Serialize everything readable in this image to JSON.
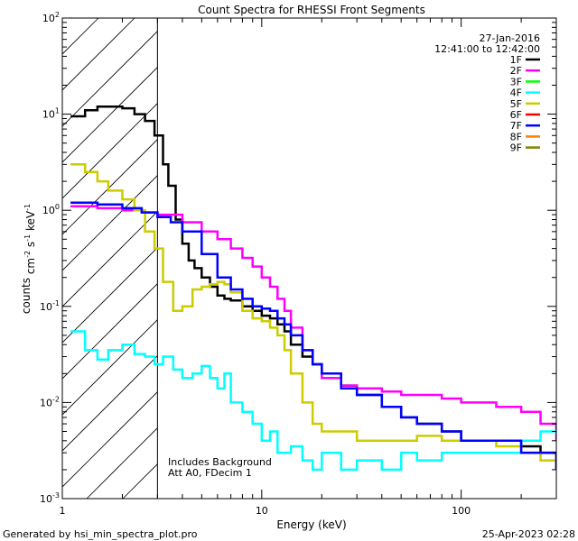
{
  "chart_data": {
    "type": "line",
    "title": "Count Spectra for RHESSI Front Segments",
    "xlabel": "Energy (keV)",
    "ylabel": "counts cm^-2 s^-1 keV^-1",
    "xscale": "log",
    "yscale": "log",
    "xlim": [
      1,
      300
    ],
    "ylim": [
      0.001,
      100
    ],
    "x_tick_labels": [
      "1",
      "10",
      "100"
    ],
    "y_tick_labels": [
      "10^-3",
      "10^-2",
      "10^-1",
      "10^0",
      "10^1",
      "10^2"
    ],
    "shaded_region": {
      "x_from": 1,
      "x_to": 3,
      "style": "diagonal-hatch"
    },
    "date_label": "27-Jan-2016",
    "time_label": "12:41:00 to 12:42:00",
    "annotation_lines": [
      "Includes Background",
      "Att A0, FDecim 1"
    ],
    "legend": [
      {
        "name": "1F",
        "color": "#000000"
      },
      {
        "name": "2F",
        "color": "#ff00ff"
      },
      {
        "name": "3F",
        "color": "#00ff00"
      },
      {
        "name": "4F",
        "color": "#00ffff"
      },
      {
        "name": "5F",
        "color": "#cccc00"
      },
      {
        "name": "6F",
        "color": "#ff0000"
      },
      {
        "name": "7F",
        "color": "#0000ff"
      },
      {
        "name": "8F",
        "color": "#ff8000"
      },
      {
        "name": "9F",
        "color": "#808000"
      }
    ],
    "series": [
      {
        "name": "1F",
        "color": "#000000",
        "x": [
          1.1,
          1.3,
          1.5,
          1.7,
          2.0,
          2.3,
          2.6,
          2.9,
          3.2,
          3.4,
          3.7,
          4.0,
          4.3,
          4.6,
          5.0,
          5.5,
          6.0,
          6.5,
          7.0,
          8.0,
          9.0,
          10.0,
          11.0,
          12.0,
          13.0,
          14.0,
          16.0,
          18.0,
          20.0,
          25.0,
          30.0,
          40.0,
          50.0,
          60.0,
          80.0,
          100.0,
          150.0,
          200.0,
          250.0,
          300.0
        ],
        "y": [
          9.5,
          11.0,
          12.0,
          12.0,
          11.5,
          10.0,
          8.5,
          6.0,
          3.0,
          1.8,
          0.8,
          0.45,
          0.3,
          0.25,
          0.2,
          0.16,
          0.13,
          0.12,
          0.115,
          0.1,
          0.09,
          0.08,
          0.075,
          0.065,
          0.055,
          0.04,
          0.03,
          0.025,
          0.02,
          0.015,
          0.012,
          0.009,
          0.007,
          0.006,
          0.005,
          0.004,
          0.004,
          0.0035,
          0.003,
          0.002
        ]
      },
      {
        "name": "2F",
        "color": "#ff00ff",
        "x": [
          1.1,
          1.5,
          2.0,
          2.5,
          3.0,
          4.0,
          5.0,
          6.0,
          7.0,
          8.0,
          9.0,
          10.0,
          11.0,
          12.0,
          13.0,
          14.0,
          16.0,
          18.0,
          20.0,
          25.0,
          30.0,
          40.0,
          50.0,
          60.0,
          80.0,
          100.0,
          150.0,
          200.0,
          250.0,
          300.0
        ],
        "y": [
          1.1,
          1.05,
          1.0,
          0.95,
          0.9,
          0.75,
          0.6,
          0.5,
          0.4,
          0.32,
          0.26,
          0.2,
          0.16,
          0.12,
          0.09,
          0.06,
          0.035,
          0.025,
          0.018,
          0.015,
          0.014,
          0.013,
          0.012,
          0.012,
          0.011,
          0.01,
          0.009,
          0.008,
          0.006,
          0.004
        ]
      },
      {
        "name": "4F",
        "color": "#00ffff",
        "x": [
          1.1,
          1.3,
          1.5,
          1.7,
          2.0,
          2.3,
          2.6,
          2.9,
          3.2,
          3.6,
          4.0,
          4.5,
          5.0,
          5.5,
          6.0,
          6.5,
          7.0,
          8.0,
          9.0,
          10.0,
          11.0,
          12.0,
          14.0,
          16.0,
          18.0,
          20.0,
          25.0,
          30.0,
          40.0,
          50.0,
          60.0,
          80.0,
          100.0,
          150.0,
          200.0,
          250.0,
          300.0
        ],
        "y": [
          0.055,
          0.035,
          0.028,
          0.035,
          0.04,
          0.032,
          0.03,
          0.025,
          0.03,
          0.022,
          0.018,
          0.02,
          0.024,
          0.018,
          0.014,
          0.02,
          0.01,
          0.008,
          0.006,
          0.004,
          0.005,
          0.003,
          0.0035,
          0.0025,
          0.002,
          0.003,
          0.002,
          0.0025,
          0.002,
          0.003,
          0.0025,
          0.003,
          0.003,
          0.003,
          0.004,
          0.005,
          0.005
        ]
      },
      {
        "name": "5F",
        "color": "#cccc00",
        "x": [
          1.1,
          1.3,
          1.5,
          1.7,
          2.0,
          2.3,
          2.6,
          2.9,
          3.2,
          3.6,
          4.0,
          4.5,
          5.0,
          5.5,
          6.0,
          6.5,
          7.0,
          8.0,
          9.0,
          10.0,
          11.0,
          12.0,
          13.0,
          14.0,
          16.0,
          18.0,
          20.0,
          25.0,
          30.0,
          40.0,
          50.0,
          60.0,
          80.0,
          100.0,
          150.0,
          200.0,
          250.0,
          300.0
        ],
        "y": [
          3.0,
          2.5,
          2.0,
          1.6,
          1.3,
          1.0,
          0.6,
          0.4,
          0.18,
          0.09,
          0.1,
          0.15,
          0.16,
          0.17,
          0.18,
          0.17,
          0.14,
          0.09,
          0.075,
          0.07,
          0.06,
          0.05,
          0.035,
          0.02,
          0.01,
          0.006,
          0.005,
          0.005,
          0.004,
          0.004,
          0.004,
          0.0045,
          0.004,
          0.004,
          0.0035,
          0.003,
          0.0025,
          0.002
        ]
      },
      {
        "name": "7F",
        "color": "#0000ff",
        "x": [
          1.1,
          1.5,
          2.0,
          2.5,
          3.0,
          3.5,
          4.0,
          5.0,
          6.0,
          7.0,
          8.0,
          9.0,
          10.0,
          11.0,
          12.0,
          13.0,
          14.0,
          16.0,
          18.0,
          20.0,
          25.0,
          30.0,
          40.0,
          50.0,
          60.0,
          80.0,
          100.0,
          150.0,
          200.0,
          250.0,
          300.0
        ],
        "y": [
          1.2,
          1.15,
          1.05,
          0.95,
          0.85,
          0.75,
          0.6,
          0.35,
          0.2,
          0.15,
          0.12,
          0.1,
          0.095,
          0.09,
          0.075,
          0.065,
          0.05,
          0.035,
          0.025,
          0.02,
          0.014,
          0.012,
          0.009,
          0.007,
          0.006,
          0.005,
          0.004,
          0.004,
          0.003,
          0.003,
          0.002
        ]
      }
    ]
  },
  "footer": {
    "generated_by": "Generated by hsi_min_spectra_plot.pro",
    "timestamp": "25-Apr-2023 02:28"
  }
}
